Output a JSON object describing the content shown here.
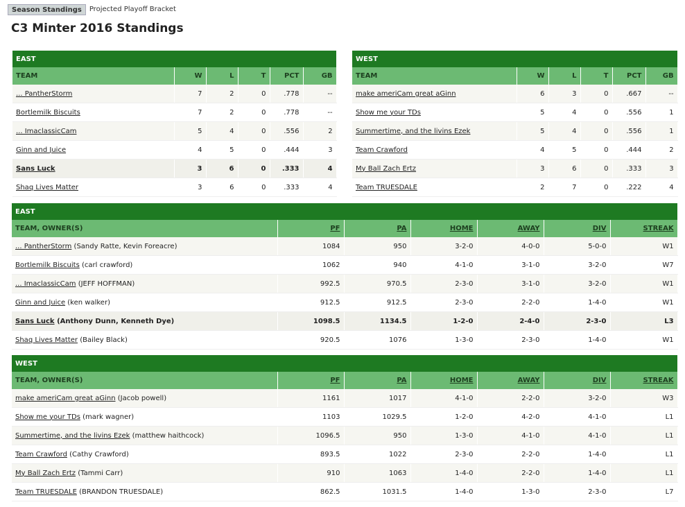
{
  "tabs": [
    "Season Standings",
    "Projected Playoff Bracket"
  ],
  "page_title": "C3 Minter 2016 Standings",
  "standings_columns": [
    "TEAM",
    "W",
    "L",
    "T",
    "PCT",
    "GB"
  ],
  "east": {
    "label": "EAST",
    "rows": [
      {
        "team": "... PantherStorm",
        "w": "7",
        "l": "2",
        "t": "0",
        "pct": ".778",
        "gb": "--"
      },
      {
        "team": "Bortlemilk Biscuits",
        "w": "7",
        "l": "2",
        "t": "0",
        "pct": ".778",
        "gb": "--"
      },
      {
        "team": "... ImaclassicCam",
        "w": "5",
        "l": "4",
        "t": "0",
        "pct": ".556",
        "gb": "2"
      },
      {
        "team": "Ginn and Juice",
        "w": "4",
        "l": "5",
        "t": "0",
        "pct": ".444",
        "gb": "3"
      },
      {
        "team": "Sans Luck",
        "w": "3",
        "l": "6",
        "t": "0",
        "pct": ".333",
        "gb": "4",
        "me": true
      },
      {
        "team": "Shaq Lives Matter",
        "w": "3",
        "l": "6",
        "t": "0",
        "pct": ".333",
        "gb": "4"
      }
    ]
  },
  "west": {
    "label": "WEST",
    "rows": [
      {
        "team": "make ameriCam great aGinn",
        "w": "6",
        "l": "3",
        "t": "0",
        "pct": ".667",
        "gb": "--"
      },
      {
        "team": "Show me your TDs",
        "w": "5",
        "l": "4",
        "t": "0",
        "pct": ".556",
        "gb": "1"
      },
      {
        "team": "Summertime, and the livins Ezek",
        "w": "5",
        "l": "4",
        "t": "0",
        "pct": ".556",
        "gb": "1"
      },
      {
        "team": "Team Crawford",
        "w": "4",
        "l": "5",
        "t": "0",
        "pct": ".444",
        "gb": "2"
      },
      {
        "team": "My Ball Zach Ertz",
        "w": "3",
        "l": "6",
        "t": "0",
        "pct": ".333",
        "gb": "3"
      },
      {
        "team": "Team TRUESDALE",
        "w": "2",
        "l": "7",
        "t": "0",
        "pct": ".222",
        "gb": "4"
      }
    ]
  },
  "detail_columns": [
    "TEAM, OWNER(S)",
    "PF",
    "PA",
    "HOME",
    "AWAY",
    "DIV",
    "STREAK"
  ],
  "east_detail": {
    "label": "EAST",
    "rows": [
      {
        "team": "... PantherStorm",
        "owner": "(Sandy Ratte, Kevin Foreacre)",
        "pf": "1084",
        "pa": "950",
        "home": "3-2-0",
        "away": "4-0-0",
        "div": "5-0-0",
        "streak": "W1"
      },
      {
        "team": "Bortlemilk Biscuits",
        "owner": "(carl crawford)",
        "pf": "1062",
        "pa": "940",
        "home": "4-1-0",
        "away": "3-1-0",
        "div": "3-2-0",
        "streak": "W7"
      },
      {
        "team": "... ImaclassicCam",
        "owner": "(JEFF HOFFMAN)",
        "pf": "992.5",
        "pa": "970.5",
        "home": "2-3-0",
        "away": "3-1-0",
        "div": "3-2-0",
        "streak": "W1"
      },
      {
        "team": "Ginn and Juice",
        "owner": "(ken walker)",
        "pf": "912.5",
        "pa": "912.5",
        "home": "2-3-0",
        "away": "2-2-0",
        "div": "1-4-0",
        "streak": "W1"
      },
      {
        "team": "Sans Luck",
        "owner": "(Anthony Dunn, Kenneth Dye)",
        "pf": "1098.5",
        "pa": "1134.5",
        "home": "1-2-0",
        "away": "2-4-0",
        "div": "2-3-0",
        "streak": "L3",
        "me": true
      },
      {
        "team": "Shaq Lives Matter",
        "owner": "(Bailey Black)",
        "pf": "920.5",
        "pa": "1076",
        "home": "1-3-0",
        "away": "2-3-0",
        "div": "1-4-0",
        "streak": "W1"
      }
    ]
  },
  "west_detail": {
    "label": "WEST",
    "rows": [
      {
        "team": "make ameriCam great aGinn",
        "owner": "(Jacob powell)",
        "pf": "1161",
        "pa": "1017",
        "home": "4-1-0",
        "away": "2-2-0",
        "div": "3-2-0",
        "streak": "W3"
      },
      {
        "team": "Show me your TDs",
        "owner": "(mark wagner)",
        "pf": "1103",
        "pa": "1029.5",
        "home": "1-2-0",
        "away": "4-2-0",
        "div": "4-1-0",
        "streak": "L1"
      },
      {
        "team": "Summertime, and the livins Ezek",
        "owner": "(matthew haithcock)",
        "pf": "1096.5",
        "pa": "950",
        "home": "1-3-0",
        "away": "4-1-0",
        "div": "4-1-0",
        "streak": "L1"
      },
      {
        "team": "Team Crawford",
        "owner": "(Cathy Crawford)",
        "pf": "893.5",
        "pa": "1022",
        "home": "2-3-0",
        "away": "2-2-0",
        "div": "1-4-0",
        "streak": "L1"
      },
      {
        "team": "My Ball Zach Ertz",
        "owner": "(Tammi Carr)",
        "pf": "910",
        "pa": "1063",
        "home": "1-4-0",
        "away": "2-2-0",
        "div": "1-4-0",
        "streak": "L1"
      },
      {
        "team": "Team TRUESDALE",
        "owner": "(BRANDON TRUESDALE)",
        "pf": "862.5",
        "pa": "1031.5",
        "home": "1-4-0",
        "away": "1-3-0",
        "div": "2-3-0",
        "streak": "L7"
      }
    ]
  },
  "colors": {
    "header": "#1e7a22",
    "subheader": "#6cba73",
    "row_alt": "#f6f6f1"
  }
}
